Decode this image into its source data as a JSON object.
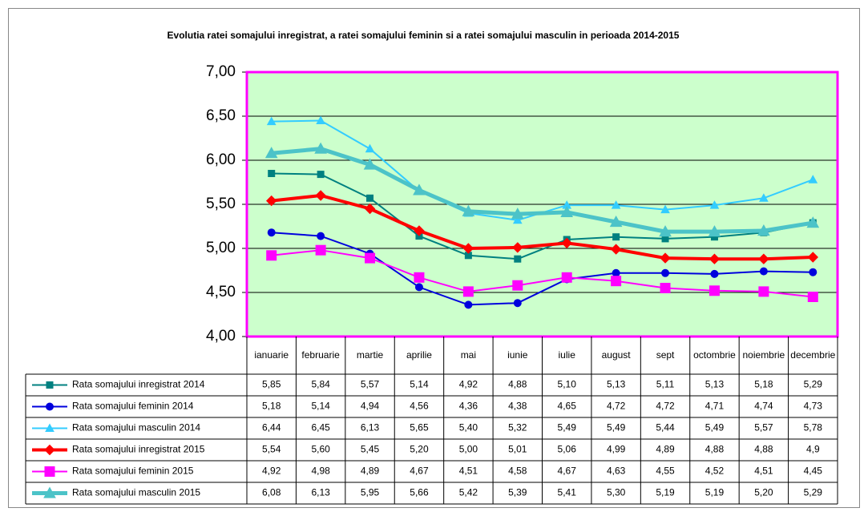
{
  "chart_data": {
    "type": "line",
    "title": "Evolutia ratei somajului inregistrat, a ratei somajului feminin si a ratei somajului masculin in perioada 2014-2015",
    "categories": [
      "ianuarie",
      "februarie",
      "martie",
      "aprilie",
      "mai",
      "iunie",
      "iulie",
      "august",
      "sept",
      "octombrie",
      "noiembrie",
      "decembrie"
    ],
    "ylim": [
      4,
      7
    ],
    "yticks": [
      {
        "value": 4,
        "label": "4,00"
      },
      {
        "value": 4.5,
        "label": "4,50"
      },
      {
        "value": 5,
        "label": "5,00"
      },
      {
        "value": 5.5,
        "label": "5,50"
      },
      {
        "value": 6,
        "label": "6,00"
      },
      {
        "value": 6.5,
        "label": "6,50"
      },
      {
        "value": 7,
        "label": "7,00"
      }
    ],
    "grid": true,
    "plot_background": "#ccffcc",
    "plot_border": "#ff00ff",
    "series": [
      {
        "name": "Rata somajului inregistrat 2014",
        "color": "#008080",
        "marker": "square",
        "line_width": 2,
        "values": [
          5.85,
          5.84,
          5.57,
          5.14,
          4.92,
          4.88,
          5.1,
          5.13,
          5.11,
          5.13,
          5.18,
          5.29
        ],
        "value_labels": [
          "5,85",
          "5,84",
          "5,57",
          "5,14",
          "4,92",
          "4,88",
          "5,10",
          "5,13",
          "5,11",
          "5,13",
          "5,18",
          "5,29"
        ]
      },
      {
        "name": "Rata somajului feminin 2014",
        "color": "#0000dd",
        "marker": "circle",
        "line_width": 2,
        "values": [
          5.18,
          5.14,
          4.94,
          4.56,
          4.36,
          4.38,
          4.65,
          4.72,
          4.72,
          4.71,
          4.74,
          4.73
        ],
        "value_labels": [
          "5,18",
          "5,14",
          "4,94",
          "4,56",
          "4,36",
          "4,38",
          "4,65",
          "4,72",
          "4,72",
          "4,71",
          "4,74",
          "4,73"
        ]
      },
      {
        "name": "Rata somajului masculin 2014",
        "color": "#33ccff",
        "marker": "triangle",
        "line_width": 2,
        "values": [
          6.44,
          6.45,
          6.13,
          5.65,
          5.4,
          5.32,
          5.49,
          5.49,
          5.44,
          5.49,
          5.57,
          5.78
        ],
        "value_labels": [
          "6,44",
          "6,45",
          "6,13",
          "5,65",
          "5,40",
          "5,32",
          "5,49",
          "5,49",
          "5,44",
          "5,49",
          "5,57",
          "5,78"
        ]
      },
      {
        "name": "Rata somajului inregistrat 2015",
        "color": "#ff0000",
        "marker": "diamond",
        "line_width": 4,
        "values": [
          5.54,
          5.6,
          5.45,
          5.2,
          5.0,
          5.01,
          5.06,
          4.99,
          4.89,
          4.88,
          4.88,
          4.9
        ],
        "value_labels": [
          "5,54",
          "5,60",
          "5,45",
          "5,20",
          "5,00",
          "5,01",
          "5,06",
          "4,99",
          "4,89",
          "4,88",
          "4,88",
          "4,9"
        ]
      },
      {
        "name": "Rata somajului feminin 2015",
        "color": "#ff00ff",
        "marker": "bigsquare",
        "line_width": 2,
        "values": [
          4.92,
          4.98,
          4.89,
          4.67,
          4.51,
          4.58,
          4.67,
          4.63,
          4.55,
          4.52,
          4.51,
          4.45
        ],
        "value_labels": [
          "4,92",
          "4,98",
          "4,89",
          "4,67",
          "4,51",
          "4,58",
          "4,67",
          "4,63",
          "4,55",
          "4,52",
          "4,51",
          "4,45"
        ]
      },
      {
        "name": "Rata somajului masculin 2015",
        "color": "#4cc3c8",
        "marker": "bigtriangle",
        "line_width": 5,
        "values": [
          6.08,
          6.13,
          5.95,
          5.66,
          5.42,
          5.39,
          5.41,
          5.3,
          5.19,
          5.19,
          5.2,
          5.29
        ],
        "value_labels": [
          "6,08",
          "6,13",
          "5,95",
          "5,66",
          "5,42",
          "5,39",
          "5,41",
          "5,30",
          "5,19",
          "5,19",
          "5,20",
          "5,29"
        ]
      }
    ]
  }
}
